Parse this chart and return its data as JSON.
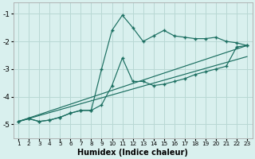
{
  "xlabel": "Humidex (Indice chaleur)",
  "bg_color": "#d9f0ee",
  "grid_color": "#b8d8d4",
  "line_color": "#1a6e60",
  "xlim": [
    0.5,
    23.5
  ],
  "ylim": [
    -5.5,
    -0.6
  ],
  "yticks": [
    -5,
    -4,
    -3,
    -2,
    -1
  ],
  "xticks": [
    1,
    2,
    3,
    4,
    5,
    6,
    7,
    8,
    9,
    10,
    11,
    12,
    13,
    14,
    15,
    16,
    17,
    18,
    19,
    20,
    21,
    22,
    23
  ],
  "curve1_x": [
    1,
    2,
    3,
    4,
    5,
    6,
    7,
    8,
    9,
    10,
    11,
    12,
    13,
    14,
    15,
    16,
    17,
    18,
    19,
    20,
    21,
    22,
    23
  ],
  "curve1_y": [
    -4.9,
    -4.8,
    -4.9,
    -4.85,
    -4.75,
    -4.6,
    -4.5,
    -4.5,
    -3.0,
    -1.6,
    -1.05,
    -1.5,
    -2.0,
    -1.8,
    -1.6,
    -1.8,
    -1.85,
    -1.9,
    -1.9,
    -1.85,
    -2.0,
    -2.05,
    -2.15
  ],
  "curve2_x": [
    1,
    2,
    3,
    4,
    5,
    6,
    7,
    8,
    9,
    10,
    11,
    12,
    13,
    14,
    15,
    16,
    17,
    18,
    19,
    20,
    21,
    22,
    23
  ],
  "curve2_y": [
    -4.9,
    -4.8,
    -4.9,
    -4.85,
    -4.75,
    -4.6,
    -4.5,
    -4.5,
    -4.3,
    -3.6,
    -2.6,
    -3.45,
    -3.45,
    -3.6,
    -3.55,
    -3.45,
    -3.35,
    -3.2,
    -3.1,
    -3.0,
    -2.9,
    -2.2,
    -2.15
  ],
  "line1_x": [
    1,
    23
  ],
  "line1_y": [
    -4.9,
    -2.15
  ],
  "line2_x": [
    1,
    23
  ],
  "line2_y": [
    -4.9,
    -2.55
  ]
}
